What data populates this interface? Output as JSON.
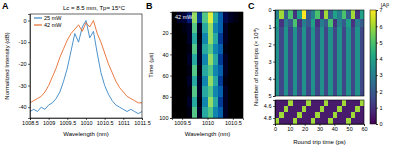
{
  "chart_data": [
    {
      "type": "line",
      "panel": "A",
      "annotation": "Lc = 8.5 mm, Tp= 15°C",
      "x_label": "Wavelength (nm)",
      "y_label": "Normalized Intensity (dB)",
      "x": [
        1008.5,
        1008.6,
        1008.7,
        1008.8,
        1008.9,
        1009.0,
        1009.1,
        1009.2,
        1009.3,
        1009.4,
        1009.5,
        1009.6,
        1009.7,
        1009.8,
        1009.9,
        1010.0,
        1010.1,
        1010.2,
        1010.3,
        1010.4,
        1010.5,
        1010.6,
        1010.7,
        1010.8,
        1010.9,
        1011.0,
        1011.1,
        1011.2,
        1011.3,
        1011.4,
        1011.5
      ],
      "series": [
        {
          "name": "25 mW",
          "color": "#3a86c4",
          "values": [
            -42,
            -41,
            -42,
            -40,
            -41,
            -39,
            -38,
            -36,
            -33,
            -28,
            -22,
            -14,
            -6,
            -10,
            -3,
            0,
            -8,
            -5,
            -15,
            -24,
            -30,
            -34,
            -37,
            -39,
            -40,
            -41,
            -42,
            -41,
            -42,
            -43,
            -42
          ]
        },
        {
          "name": "42 mW",
          "color": "#e6692b",
          "values": [
            -38,
            -37,
            -36,
            -35,
            -33,
            -30,
            -26,
            -22,
            -17,
            -13,
            -9,
            -6,
            -4,
            -2,
            -5,
            -1,
            -3,
            0,
            -6,
            -10,
            -15,
            -20,
            -24,
            -28,
            -31,
            -33,
            -35,
            -36,
            -37,
            -38,
            -38
          ]
        }
      ],
      "xlim": [
        1008.5,
        1011.5
      ],
      "xticks": [
        1008.5,
        1009,
        1009.5,
        1010,
        1010.5,
        1011,
        1011.5
      ],
      "ylim": [
        -45,
        3
      ],
      "yticks": [
        -40,
        -30,
        -20,
        -10,
        0
      ],
      "legend": "upper left"
    },
    {
      "type": "heatmap",
      "panel": "B",
      "annotation": "42 mW",
      "x_label": "Wavelength (nm)",
      "y_label": "Time (μs)",
      "x": [
        1009.35,
        1009.45,
        1009.55,
        1009.65,
        1009.75,
        1009.85,
        1009.95,
        1010.05,
        1010.15,
        1010.25,
        1010.35,
        1010.45,
        1010.55,
        1010.65
      ],
      "y": [
        5,
        15,
        25,
        35,
        45,
        55,
        65,
        75,
        85,
        95
      ],
      "values": [
        [
          0,
          0.1,
          0.15,
          0.3,
          0.9,
          0.4,
          0.8,
          1,
          0.7,
          0.5,
          0.2,
          0.1,
          0.05,
          0
        ],
        [
          0,
          0,
          0.05,
          0.1,
          0.8,
          0.1,
          0.7,
          0.9,
          0.6,
          0.5,
          0.1,
          0,
          0,
          0
        ],
        [
          0,
          0,
          0,
          0.1,
          0.7,
          0.05,
          0.6,
          0.9,
          0.7,
          0.4,
          0.1,
          0,
          0,
          0
        ],
        [
          0,
          0,
          0,
          0.05,
          0.8,
          0.1,
          0.7,
          0.8,
          0.6,
          0.5,
          0.05,
          0,
          0,
          0
        ],
        [
          0,
          0,
          0,
          0.1,
          0.7,
          0.1,
          0.6,
          0.9,
          0.7,
          0.4,
          0.1,
          0,
          0,
          0
        ],
        [
          0,
          0,
          0,
          0.05,
          0.8,
          0.05,
          0.7,
          0.8,
          0.6,
          0.5,
          0.1,
          0,
          0,
          0
        ],
        [
          0,
          0,
          0,
          0.1,
          0.7,
          0.1,
          0.6,
          0.9,
          0.7,
          0.4,
          0.05,
          0,
          0,
          0
        ],
        [
          0,
          0,
          0,
          0.05,
          0.8,
          0.1,
          0.7,
          0.8,
          0.6,
          0.5,
          0.1,
          0,
          0,
          0
        ],
        [
          0,
          0,
          0,
          0.1,
          0.7,
          0.05,
          0.6,
          0.9,
          0.7,
          0.4,
          0.1,
          0,
          0,
          0
        ],
        [
          0,
          0,
          0,
          0.05,
          0.8,
          0.1,
          0.7,
          0.8,
          0.6,
          0.5,
          0.1,
          0,
          0,
          0
        ]
      ],
      "xlim": [
        1009.3,
        1010.7
      ],
      "xticks": [
        1009.5,
        1010,
        1010.5
      ],
      "ylim": [
        0,
        100
      ],
      "yticks": [
        20,
        40,
        60,
        80,
        100
      ]
    },
    {
      "type": "heatmap",
      "panel": "C",
      "y_label": "Number of round trips (× 10⁴)",
      "x": [
        1.5,
        4.5,
        7.5,
        10.5,
        13.5,
        16.5,
        19.5,
        22.5,
        25.5,
        28.5,
        31.5,
        34.5,
        37.5,
        40.5,
        43.5,
        46.5,
        49.5,
        52.5,
        55.5,
        58.5
      ],
      "y": [
        0.25,
        0.75,
        1.25,
        1.75,
        2.25,
        2.75,
        3.25,
        3.75,
        4.25,
        4.75
      ],
      "values": [
        [
          3,
          6,
          2,
          5,
          1,
          4,
          7,
          2,
          3,
          5,
          1,
          6,
          2,
          4,
          3,
          5,
          2,
          6,
          1,
          4
        ],
        [
          4,
          1,
          3,
          2,
          5,
          1,
          3,
          2,
          4,
          1,
          3,
          2,
          5,
          1,
          3,
          2,
          4,
          1,
          3,
          2
        ],
        [
          3.5,
          1.5,
          3.5,
          1.5,
          3.5,
          1.5,
          3.5,
          1.5,
          3.5,
          1.5,
          3.5,
          1.5,
          3.5,
          1.5,
          3.5,
          1.5,
          3.5,
          1.5,
          3.5,
          1.5
        ],
        [
          3.5,
          1.5,
          3.5,
          1.5,
          3.5,
          1.5,
          3.5,
          1.5,
          3.5,
          1.5,
          3.5,
          1.5,
          3.5,
          1.5,
          3.5,
          1.5,
          3.5,
          1.5,
          3.5,
          1.5
        ],
        [
          3.5,
          1.5,
          3.5,
          1.5,
          3.5,
          1.5,
          3.5,
          1.5,
          3.5,
          1.5,
          3.5,
          1.5,
          3.5,
          1.5,
          3.5,
          1.5,
          3.5,
          1.5,
          3.5,
          1.5
        ],
        [
          3.5,
          1.5,
          3.5,
          1.5,
          3.5,
          1.5,
          3.5,
          1.5,
          3.5,
          1.5,
          3.5,
          1.5,
          3.5,
          1.5,
          3.5,
          1.5,
          3.5,
          1.5,
          3.5,
          1.5
        ],
        [
          3.5,
          1.5,
          3.5,
          1.5,
          3.5,
          1.5,
          3.5,
          1.5,
          3.5,
          1.5,
          3.5,
          1.5,
          3.5,
          1.5,
          3.5,
          1.5,
          3.5,
          1.5,
          3.5,
          1.5
        ],
        [
          3.5,
          1.5,
          3.5,
          1.5,
          3.5,
          1.5,
          3.5,
          1.5,
          3.5,
          1.5,
          3.5,
          1.5,
          3.5,
          1.5,
          3.5,
          1.5,
          3.5,
          1.5,
          3.5,
          1.5
        ],
        [
          3.5,
          1.5,
          3.5,
          1.5,
          3.5,
          1.5,
          3.5,
          1.5,
          3.5,
          1.5,
          3.5,
          1.5,
          3.5,
          1.5,
          3.5,
          1.5,
          3.5,
          1.5,
          3.5,
          1.5
        ],
        [
          3.5,
          1.5,
          3.5,
          1.5,
          3.5,
          1.5,
          3.5,
          1.5,
          3.5,
          1.5,
          3.5,
          1.5,
          3.5,
          1.5,
          3.5,
          1.5,
          3.5,
          1.5,
          3.5,
          1.5
        ]
      ],
      "xlim": [
        0,
        60
      ],
      "ylim": [
        0,
        5
      ],
      "yticks": [
        0,
        1,
        2,
        3,
        4,
        5
      ],
      "tick_labels": "y",
      "zlim": [
        0,
        7
      ],
      "zticks": [
        0,
        1,
        2,
        3,
        4,
        5,
        6,
        7
      ],
      "colorbar_label": "|A|²",
      "inset": {
        "type": "heatmap",
        "x_label": "Round trip time (ps)",
        "x": [
          1.5,
          4.5,
          7.5,
          10.5,
          13.5,
          16.5,
          19.5,
          22.5,
          25.5,
          28.5,
          31.5,
          34.5,
          37.5,
          40.5,
          43.5,
          46.5,
          49.5,
          52.5,
          55.5,
          58.5
        ],
        "y": [
          4.55,
          4.65,
          4.75,
          4.85
        ],
        "values": [
          [
            0.5,
            0.5,
            0.5,
            6,
            0.5,
            0.5,
            0.5,
            6,
            0.5,
            0.5,
            0.5,
            6,
            0.5,
            0.5,
            0.5,
            6,
            0.5,
            0.5,
            0.5,
            6
          ],
          [
            0.5,
            0.5,
            6,
            0.5,
            0.5,
            0.5,
            6,
            0.5,
            0.5,
            0.5,
            6,
            0.5,
            0.5,
            0.5,
            6,
            0.5,
            0.5,
            0.5,
            6,
            0.5
          ],
          [
            0.5,
            6,
            0.5,
            0.5,
            0.5,
            6,
            0.5,
            0.5,
            0.5,
            6,
            0.5,
            0.5,
            0.5,
            6,
            0.5,
            0.5,
            0.5,
            6,
            0.5,
            0.5
          ],
          [
            6,
            0.5,
            0.5,
            0.5,
            6,
            0.5,
            0.5,
            0.5,
            6,
            0.5,
            0.5,
            0.5,
            6,
            0.5,
            0.5,
            0.5,
            6,
            0.5,
            0.5,
            0.5
          ]
        ],
        "xlim": [
          0,
          60
        ],
        "xticks": [
          0,
          10,
          20,
          30,
          40,
          50,
          60
        ],
        "ylim": [
          4.5,
          4.9
        ],
        "yticks": [
          4.6,
          4.8
        ]
      }
    }
  ]
}
